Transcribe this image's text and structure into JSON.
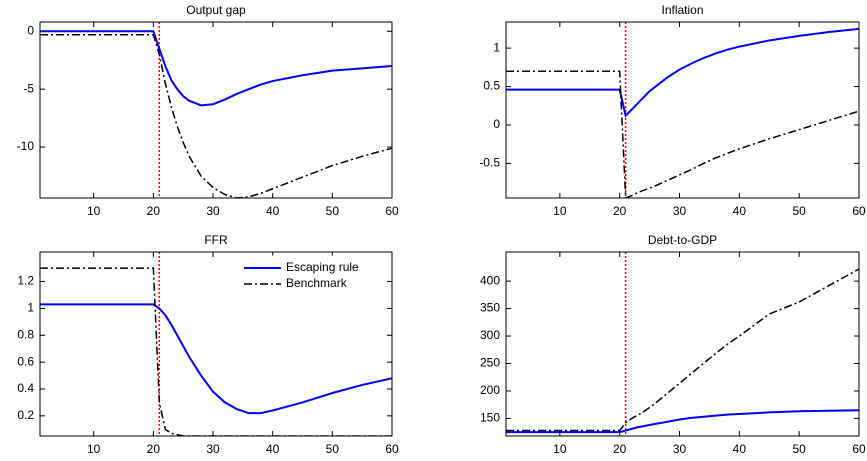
{
  "chart_data": [
    {
      "type": "line",
      "title": "Output gap",
      "x": [
        1,
        20,
        21,
        22,
        23,
        24,
        25,
        26,
        28,
        30,
        32,
        34,
        36,
        38,
        40,
        45,
        50,
        55,
        60
      ],
      "series": [
        {
          "name": "Escaping rule",
          "color": "#0000ff",
          "dash": "solid",
          "values": [
            0,
            0,
            -1.5,
            -3,
            -4.2,
            -5,
            -5.6,
            -6,
            -6.4,
            -6.3,
            -5.9,
            -5.4,
            -5,
            -4.6,
            -4.3,
            -3.8,
            -3.4,
            -3.2,
            -3.0
          ]
        },
        {
          "name": "Benchmark",
          "color": "#000000",
          "dash": "dashdot",
          "values": [
            -0.3,
            -0.3,
            -2,
            -4.5,
            -6.5,
            -8.2,
            -9.6,
            -10.8,
            -12.5,
            -13.5,
            -14.1,
            -14.4,
            -14.3,
            -14,
            -13.6,
            -12.6,
            -11.6,
            -10.8,
            -10.1
          ]
        }
      ],
      "xlim": [
        1,
        60
      ],
      "xticks": [
        10,
        20,
        30,
        40,
        50,
        60
      ],
      "ylim": [
        -14.4,
        0.8
      ],
      "yticks": [
        -10,
        -5,
        0
      ],
      "vline": 21,
      "vline_color": "#ff0000"
    },
    {
      "type": "line",
      "title": "Inflation",
      "x": [
        1,
        20,
        21,
        22,
        23,
        24,
        25,
        26,
        28,
        30,
        32,
        34,
        36,
        38,
        40,
        45,
        50,
        55,
        60
      ],
      "series": [
        {
          "name": "Escaping rule",
          "color": "#0000ff",
          "dash": "solid",
          "values": [
            0.46,
            0.46,
            0.12,
            0.2,
            0.28,
            0.36,
            0.44,
            0.5,
            0.62,
            0.72,
            0.8,
            0.87,
            0.93,
            0.98,
            1.02,
            1.1,
            1.16,
            1.21,
            1.25
          ]
        },
        {
          "name": "Benchmark",
          "color": "#000000",
          "dash": "dashdot",
          "values": [
            0.7,
            0.7,
            -0.95,
            -0.92,
            -0.88,
            -0.85,
            -0.82,
            -0.79,
            -0.72,
            -0.65,
            -0.58,
            -0.5,
            -0.43,
            -0.37,
            -0.31,
            -0.18,
            -0.06,
            0.06,
            0.18
          ]
        }
      ],
      "xlim": [
        1,
        60
      ],
      "xticks": [
        10,
        20,
        30,
        40,
        50,
        60
      ],
      "ylim": [
        -0.95,
        1.34
      ],
      "yticks": [
        -0.5,
        0,
        0.5,
        1
      ],
      "vline": 21,
      "vline_color": "#ff0000"
    },
    {
      "type": "line",
      "title": "FFR",
      "x": [
        1,
        20,
        21,
        22,
        23,
        24,
        25,
        26,
        28,
        30,
        32,
        34,
        36,
        38,
        40,
        45,
        50,
        55,
        60
      ],
      "series": [
        {
          "name": "Escaping rule",
          "color": "#0000ff",
          "dash": "solid",
          "values": [
            1.03,
            1.03,
            1.0,
            0.95,
            0.88,
            0.8,
            0.72,
            0.64,
            0.5,
            0.38,
            0.3,
            0.25,
            0.22,
            0.22,
            0.24,
            0.3,
            0.37,
            0.43,
            0.48
          ]
        },
        {
          "name": "Benchmark",
          "color": "#000000",
          "dash": "dashdot",
          "values": [
            1.3,
            1.3,
            0.3,
            0.1,
            0.07,
            0.06,
            0.05,
            0.05,
            0.05,
            0.05,
            0.05,
            0.05,
            0.05,
            0.05,
            0.05,
            0.05,
            0.05,
            0.05,
            0.05
          ]
        }
      ],
      "xlim": [
        1,
        60
      ],
      "xticks": [
        10,
        20,
        30,
        40,
        50,
        60
      ],
      "ylim": [
        0.05,
        1.42
      ],
      "yticks": [
        0.2,
        0.4,
        0.6,
        0.8,
        1,
        1.2
      ],
      "vline": 21,
      "vline_color": "#ff0000",
      "legend": "upper right"
    },
    {
      "type": "line",
      "title": "Debt-to-GDP",
      "x": [
        1,
        20,
        21,
        22,
        23,
        24,
        25,
        26,
        28,
        30,
        32,
        34,
        36,
        38,
        40,
        45,
        50,
        55,
        60
      ],
      "series": [
        {
          "name": "Escaping rule",
          "color": "#0000ff",
          "dash": "solid",
          "values": [
            125,
            125,
            128,
            131,
            134,
            136,
            138,
            140,
            144,
            148,
            151,
            153,
            155,
            157,
            158,
            161,
            163,
            164,
            165
          ]
        },
        {
          "name": "Benchmark",
          "color": "#000000",
          "dash": "dashdot",
          "values": [
            128,
            128,
            142,
            150,
            156,
            162,
            170,
            178,
            196,
            214,
            232,
            250,
            268,
            285,
            300,
            340,
            362,
            392,
            422
          ]
        }
      ],
      "xlim": [
        1,
        60
      ],
      "xticks": [
        10,
        20,
        30,
        40,
        50,
        60
      ],
      "ylim": [
        118,
        453
      ],
      "yticks": [
        150,
        200,
        250,
        300,
        350,
        400
      ],
      "vline": 21,
      "vline_color": "#ff0000"
    }
  ]
}
